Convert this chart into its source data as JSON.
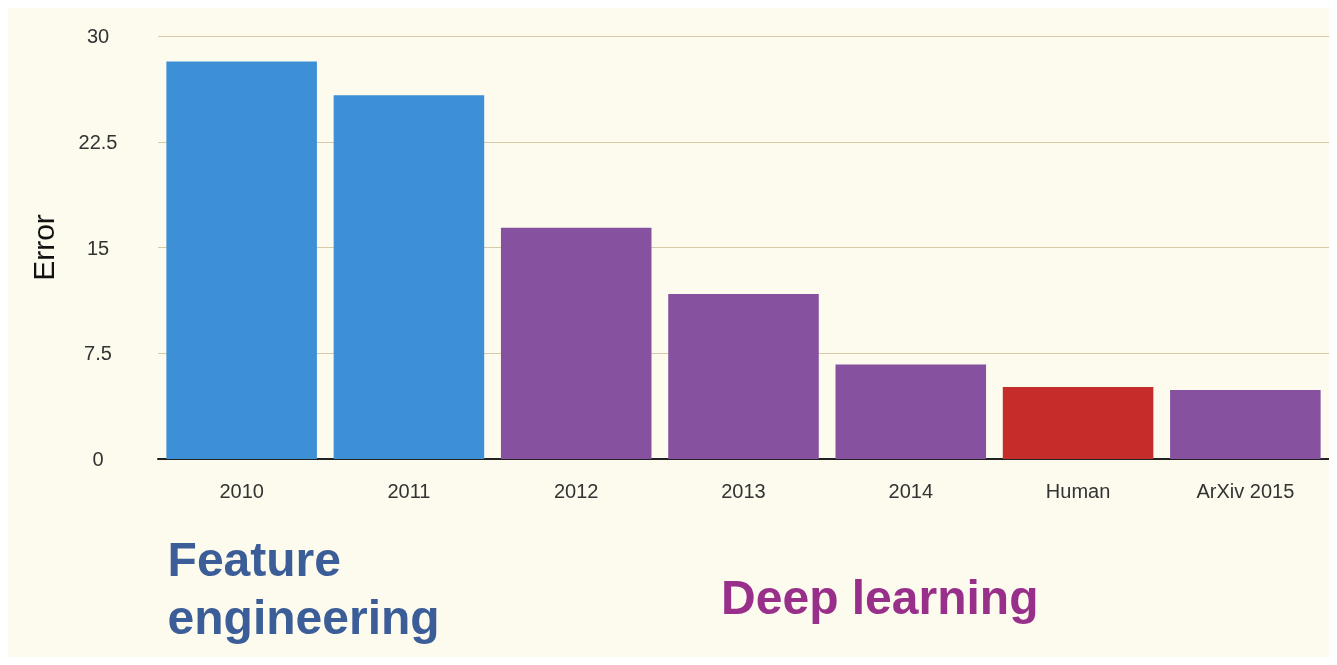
{
  "chart_data": {
    "type": "bar",
    "ylabel": "Error",
    "categories": [
      "2010",
      "2011",
      "2012",
      "2013",
      "2014",
      "Human",
      "ArXiv 2015"
    ],
    "values": [
      28.2,
      25.8,
      16.4,
      11.7,
      6.7,
      5.1,
      4.9
    ],
    "colors": [
      "#3d8fd6",
      "#3d8fd6",
      "#86519f",
      "#86519f",
      "#86519f",
      "#c52d2b",
      "#86519f"
    ],
    "ylim": [
      0,
      30
    ],
    "yticks": [
      0,
      7.5,
      15,
      22.5,
      30
    ],
    "grid": "y",
    "annotations": [
      "Feature\nengineering",
      "Deep learning"
    ]
  }
}
